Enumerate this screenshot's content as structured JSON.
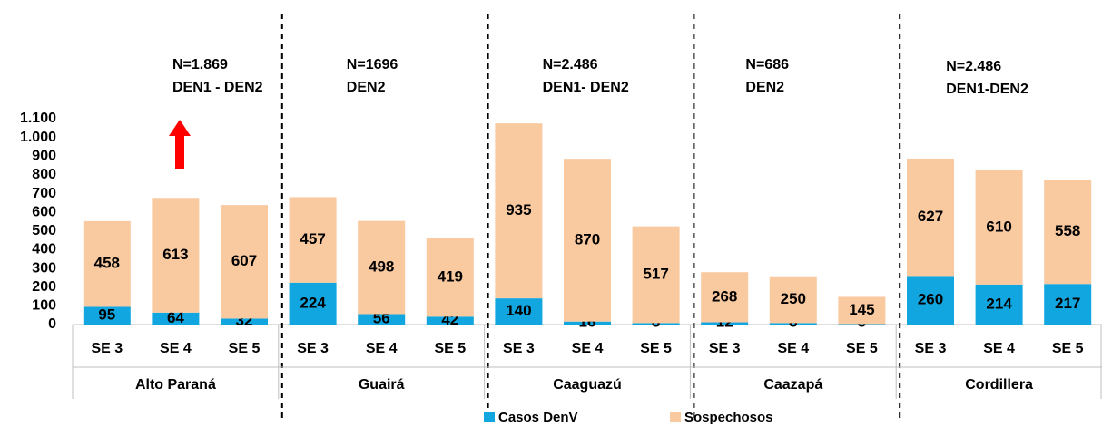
{
  "chart_data": {
    "type": "stacked_bar",
    "groups": [
      {
        "name": "Alto Paraná",
        "annotation": [
          "N=1.869",
          "DEN1 - DEN2"
        ]
      },
      {
        "name": "Guairá",
        "annotation": [
          "N=1696",
          "DEN2"
        ]
      },
      {
        "name": "Caaguazú",
        "annotation": [
          "N=2.486",
          "DEN1- DEN2"
        ]
      },
      {
        "name": "Caazapá",
        "annotation": [
          "N=686",
          "DEN2"
        ]
      },
      {
        "name": "Cordillera",
        "annotation": [
          "N=2.486",
          "DEN1-DEN2"
        ]
      }
    ],
    "categories": [
      "SE 3",
      "SE 4",
      "SE 5",
      "SE 3",
      "SE 4",
      "SE 5",
      "SE 3",
      "SE 4",
      "SE 5",
      "SE 3",
      "SE 4",
      "SE 5",
      "SE 3",
      "SE 4",
      "SE 5"
    ],
    "series": [
      {
        "name": "Casos DenV",
        "color": "#12a6e0",
        "values": [
          95,
          64,
          32,
          224,
          56,
          42,
          140,
          16,
          8,
          12,
          8,
          3,
          260,
          214,
          217
        ]
      },
      {
        "name": "Sospechosos",
        "color": "#f9c9a0",
        "values": [
          458,
          613,
          607,
          457,
          498,
          419,
          935,
          870,
          517,
          268,
          250,
          145,
          627,
          610,
          558
        ]
      }
    ],
    "ylim": [
      0,
      1100
    ],
    "yticks": [
      0,
      100,
      200,
      300,
      400,
      500,
      600,
      700,
      800,
      900,
      {
        "value": 1000,
        "label": "1.000"
      },
      {
        "value": 1100,
        "label": "1.100"
      }
    ],
    "legend": "bottom"
  }
}
